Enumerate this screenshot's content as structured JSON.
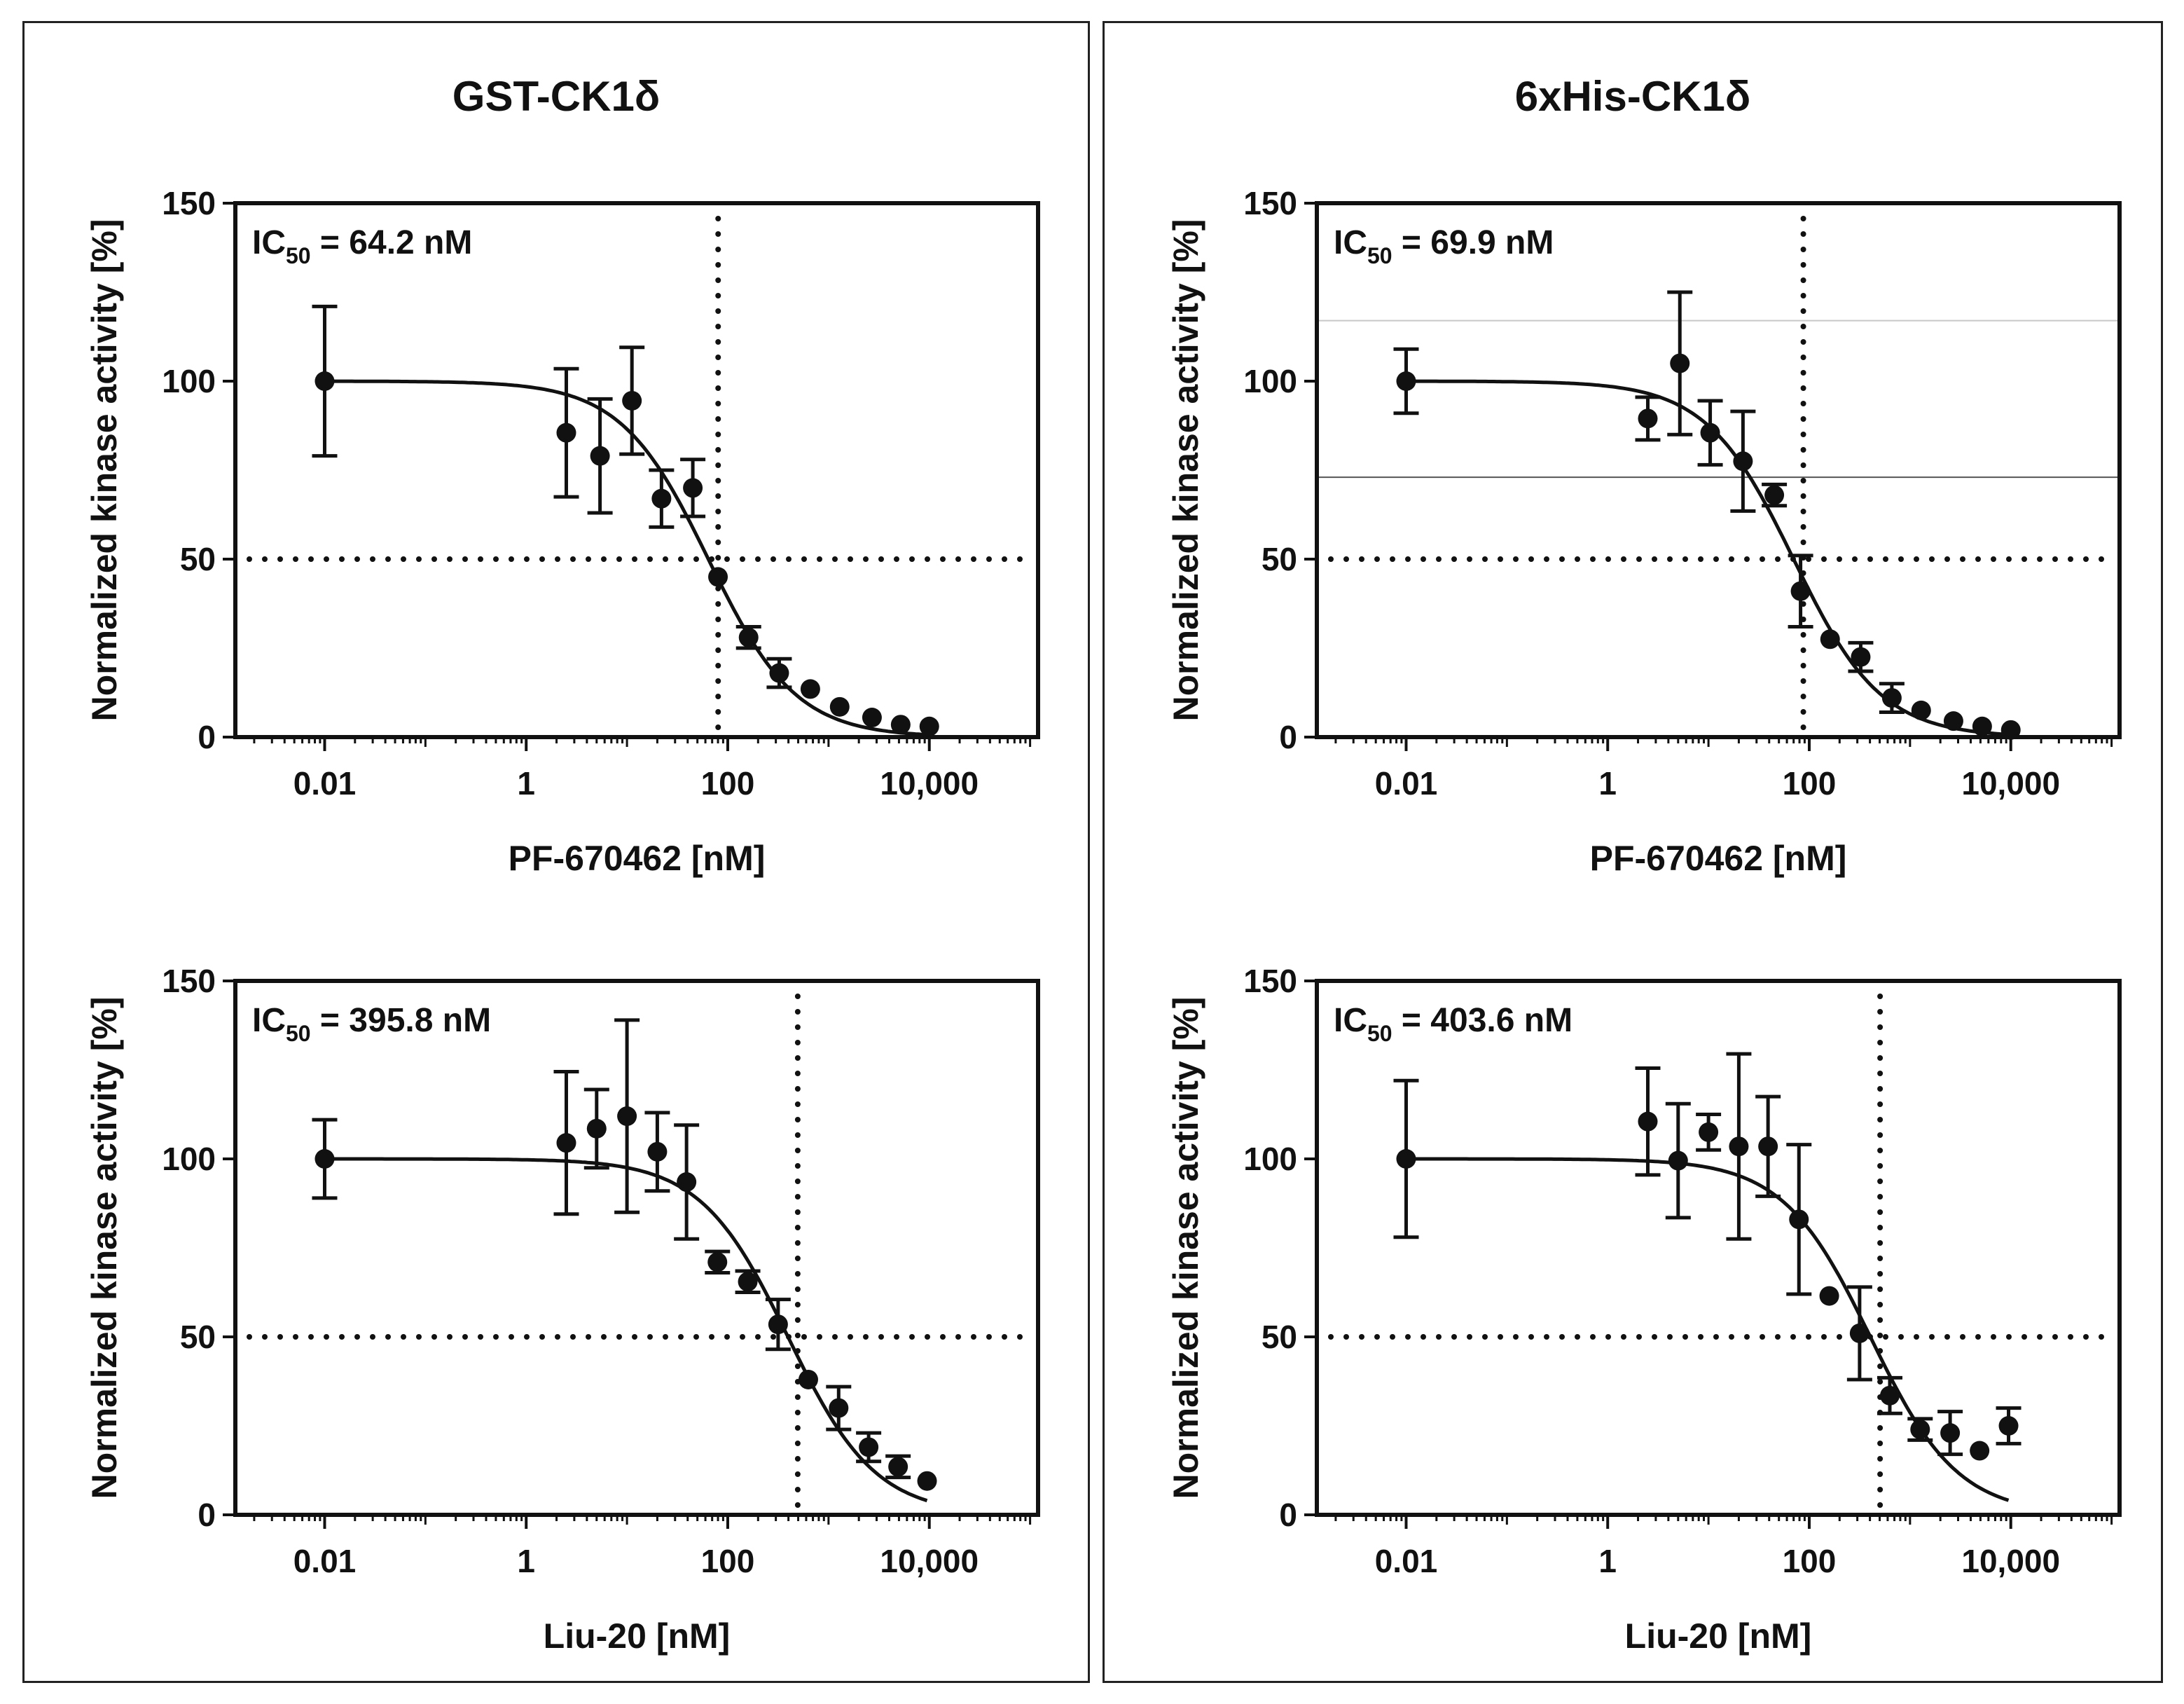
{
  "panels": [
    {
      "title": "GST-CK1δ"
    },
    {
      "title": "6xHis-CK1δ"
    }
  ],
  "chart_data": [
    {
      "type": "scatter",
      "panel": "GST-CK1δ",
      "title": "",
      "xlabel": "PF-670462 [nM]",
      "ylabel": "Normalized kinase activity [%]",
      "xscale": "log",
      "xlim": [
        0.0013,
        120000
      ],
      "ylim": [
        0,
        150
      ],
      "xticks": [
        0.01,
        1,
        100,
        10000
      ],
      "xtick_labels": [
        "0.01",
        "1",
        "100",
        "10,000"
      ],
      "yticks": [
        0,
        50,
        100,
        150
      ],
      "ytick_labels": [
        "0",
        "50",
        "100",
        "150"
      ],
      "annotation": {
        "prefix": "IC",
        "sub": "50",
        "suffix": " = 64.2 nM"
      },
      "ic50": 64.2,
      "hillslope": 1.0,
      "threshold_y": 50,
      "x": [
        0.01,
        2.5,
        5.4,
        11.2,
        22,
        45,
        80,
        161,
        324,
        660,
        1290,
        2700,
        5200,
        10000
      ],
      "y": [
        100,
        85.5,
        79,
        94.5,
        67,
        70,
        45,
        28,
        18,
        13.5,
        8.5,
        5.5,
        3.5,
        3
      ],
      "err": [
        21,
        18,
        16,
        15,
        8,
        8,
        2,
        3,
        4,
        2,
        2,
        1,
        1,
        1
      ],
      "reference_lines": []
    },
    {
      "type": "scatter",
      "panel": "6xHis-CK1δ",
      "title": "",
      "xlabel": "PF-670462 [nM]",
      "ylabel": "Normalized kinase activity [%]",
      "xscale": "log",
      "xlim": [
        0.0013,
        120000
      ],
      "ylim": [
        0,
        150
      ],
      "xticks": [
        0.01,
        1,
        100,
        10000
      ],
      "xtick_labels": [
        "0.01",
        "1",
        "100",
        "10,000"
      ],
      "yticks": [
        0,
        50,
        100,
        150
      ],
      "ytick_labels": [
        "0",
        "50",
        "100",
        "150"
      ],
      "annotation": {
        "prefix": "IC",
        "sub": "50",
        "suffix": " = 69.9 nM"
      },
      "ic50": 69.9,
      "hillslope": 1.0,
      "threshold_y": 50,
      "x": [
        0.01,
        2.5,
        5.2,
        10.4,
        22,
        45,
        82,
        161,
        324,
        660,
        1290,
        2700,
        5200,
        10000
      ],
      "y": [
        100,
        89.5,
        105,
        85.5,
        77.5,
        68,
        41,
        27.5,
        22.5,
        11,
        7.5,
        4.5,
        3,
        2
      ],
      "err": [
        9,
        6,
        20,
        9,
        14,
        3,
        10,
        2,
        4,
        4,
        2,
        1,
        1,
        1
      ],
      "reference_lines": [
        {
          "y": 117,
          "color": "#c8c8c8"
        },
        {
          "y": 73,
          "color": "#555555"
        }
      ]
    },
    {
      "type": "scatter",
      "panel": "GST-CK1δ",
      "title": "",
      "xlabel": "Liu-20 [nM]",
      "ylabel": "Normalized kinase activity [%]",
      "xscale": "log",
      "xlim": [
        0.0013,
        120000
      ],
      "ylim": [
        0,
        150
      ],
      "xticks": [
        0.01,
        1,
        100,
        10000
      ],
      "xtick_labels": [
        "0.01",
        "1",
        "100",
        "10,000"
      ],
      "yticks": [
        0,
        50,
        100,
        150
      ],
      "ytick_labels": [
        "0",
        "50",
        "100",
        "150"
      ],
      "annotation": {
        "prefix": "IC",
        "sub": "50",
        "suffix": " = 395.8 nM"
      },
      "ic50": 395.8,
      "hillslope": 1.0,
      "threshold_y": 50,
      "x": [
        0.01,
        2.5,
        5,
        10,
        20,
        39,
        79,
        158,
        316,
        630,
        1260,
        2500,
        4900,
        9500
      ],
      "y": [
        100,
        104.5,
        108.5,
        112,
        102,
        93.5,
        71,
        65.5,
        53.5,
        38,
        30,
        19,
        13.5,
        9.5
      ],
      "err": [
        11,
        20,
        11,
        27,
        11,
        16,
        3,
        3,
        7,
        2,
        6,
        4,
        3,
        1
      ],
      "reference_lines": []
    },
    {
      "type": "scatter",
      "panel": "6xHis-CK1δ",
      "title": "",
      "xlabel": "Liu-20 [nM]",
      "ylabel": "Normalized kinase activity [%]",
      "xscale": "log",
      "xlim": [
        0.0013,
        120000
      ],
      "ylim": [
        0,
        150
      ],
      "xticks": [
        0.01,
        1,
        100,
        10000
      ],
      "xtick_labels": [
        "0.01",
        "1",
        "100",
        "10,000"
      ],
      "yticks": [
        0,
        50,
        100,
        150
      ],
      "ytick_labels": [
        "0",
        "50",
        "100",
        "150"
      ],
      "annotation": {
        "prefix": "IC",
        "sub": "50",
        "suffix": " = 403.6 nM"
      },
      "ic50": 403.6,
      "hillslope": 1.0,
      "threshold_y": 50,
      "x": [
        0.01,
        2.5,
        5,
        10,
        20,
        39,
        79,
        158,
        316,
        630,
        1260,
        2500,
        4900,
        9500
      ],
      "y": [
        100,
        110.5,
        99.5,
        107.5,
        103.5,
        103.5,
        83,
        61.5,
        51,
        33.5,
        24,
        23,
        18,
        25
      ],
      "err": [
        22,
        15,
        16,
        5,
        26,
        14,
        21,
        2,
        13,
        5,
        3,
        6,
        2,
        5
      ],
      "reference_lines": []
    }
  ]
}
